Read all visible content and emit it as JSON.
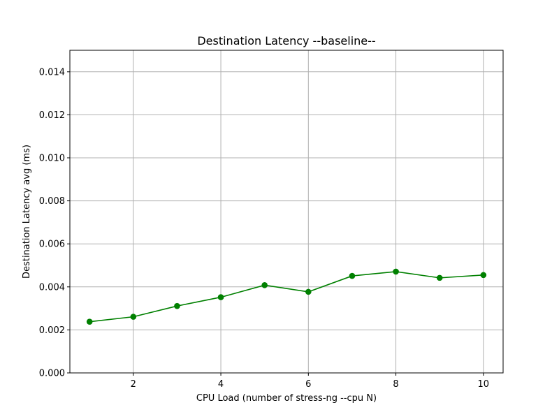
{
  "chart_data": {
    "type": "line",
    "title": "Destination Latency --baseline--",
    "xlabel": "CPU Load (number of stress-ng --cpu N)",
    "ylabel": "Destination Latency avg (ms)",
    "xlim": [
      0.55,
      10.45
    ],
    "ylim": [
      0,
      0.015
    ],
    "xticks": [
      2,
      4,
      6,
      8,
      10
    ],
    "xtick_labels": [
      "2",
      "4",
      "6",
      "8",
      "10"
    ],
    "yticks": [
      0,
      0.002,
      0.004,
      0.006,
      0.008,
      0.01,
      0.012,
      0.014
    ],
    "ytick_labels": [
      "0.000",
      "0.002",
      "0.004",
      "0.006",
      "0.008",
      "0.010",
      "0.012",
      "0.014"
    ],
    "grid": true,
    "legend": false,
    "series": [
      {
        "color": "#008000",
        "marker": "circle",
        "x": [
          1,
          2,
          3,
          4,
          5,
          6,
          7,
          8,
          9,
          10
        ],
        "y": [
          0.00238,
          0.00261,
          0.00311,
          0.00352,
          0.00408,
          0.00377,
          0.00451,
          0.00471,
          0.00442,
          0.00455
        ]
      }
    ]
  }
}
